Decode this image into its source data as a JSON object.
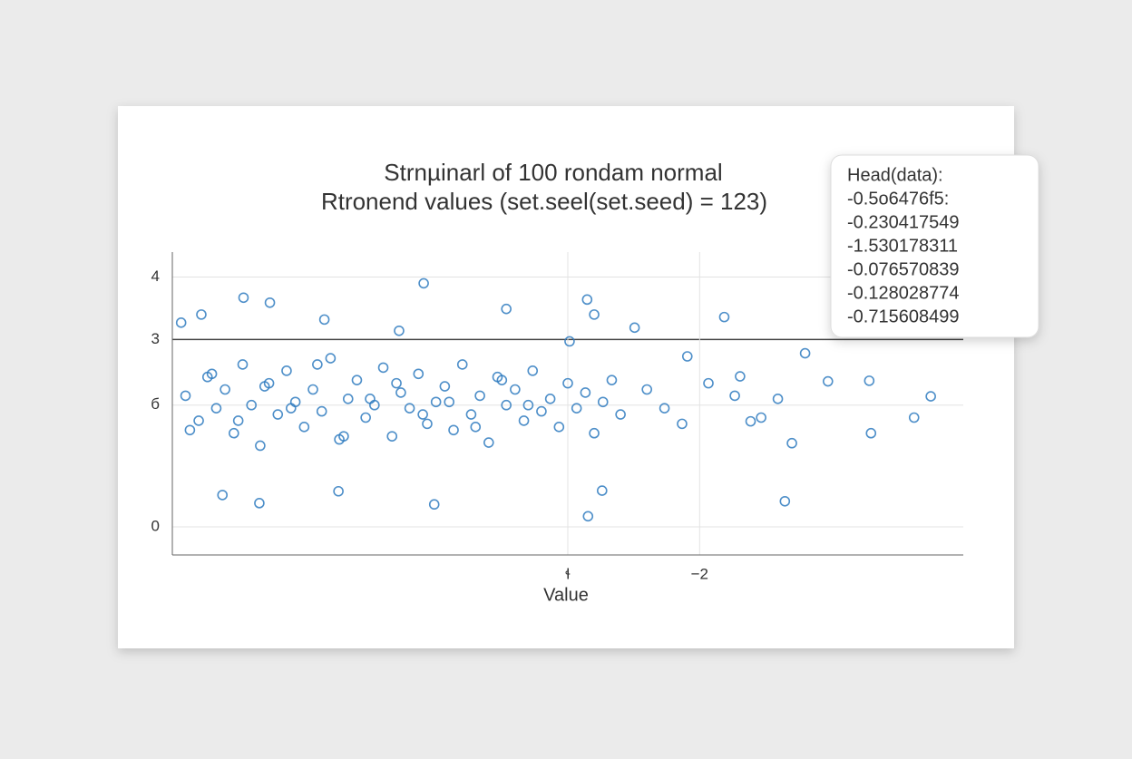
{
  "chart_data": {
    "type": "scatter",
    "title": [
      "Strnµinarl of 100 rondam normal",
      "Rtronend values (set.seel(set.seed) = 123)"
    ],
    "xlabel": "Value",
    "color": "#2f7bbf",
    "grid": true,
    "emphasis_ytick": 2,
    "xlim": [
      -8,
      1
    ],
    "ylim": [
      -0.45,
      4.4
    ],
    "xticks": [
      {
        "value": -3.5,
        "label": "ɬ"
      },
      {
        "value": -2,
        "label": "−2"
      }
    ],
    "yticks": [
      0,
      {
        "value": 1.95,
        "label": "б"
      },
      3,
      4
    ],
    "x": [
      -7.19,
      -6.89,
      -5.14,
      -3.28,
      -4.2,
      -1.72,
      -0.8,
      0.63,
      0.44,
      -1.03,
      -3.27,
      -7.01,
      -7.43,
      -6.11,
      -5.02,
      -3.11,
      -0.07,
      -0.54,
      -0.05,
      -0.95,
      -1.11,
      -1.42,
      -2.74,
      -2.14,
      -1.54,
      -7.9,
      -7.67,
      -6.27,
      -5.42,
      -3.2,
      -3.48,
      -7.85,
      -7.7,
      -7.6,
      -7.5,
      -7.4,
      -7.3,
      -7.2,
      -7.1,
      -7.0,
      -6.9,
      -6.8,
      -6.7,
      -6.6,
      -6.5,
      -6.4,
      -6.3,
      -6.2,
      -6.1,
      -6.0,
      -5.9,
      -5.8,
      -5.7,
      -5.6,
      -5.5,
      -5.4,
      -5.3,
      -5.2,
      -5.1,
      -5.0,
      -4.9,
      -4.8,
      -4.7,
      -4.6,
      -4.5,
      -4.4,
      -4.3,
      -4.2,
      -4.1,
      -4.0,
      -3.9,
      -3.8,
      -3.7,
      -3.6,
      -3.5,
      -3.4,
      -3.3,
      -3.2,
      -3.1,
      -3.0,
      -2.9,
      -2.6,
      -2.4,
      -2.2,
      -1.9,
      -1.6,
      -1.3,
      -7.8,
      -7.55,
      -7.25,
      -6.95,
      -6.65,
      -6.35,
      -6.05,
      -5.75,
      -5.45,
      -5.15,
      -4.85,
      -4.55,
      -4.25,
      -3.95
    ],
    "values": [
      3.67,
      3.59,
      3.9,
      3.64,
      3.49,
      3.36,
      2.78,
      2.09,
      1.75,
      0.41,
      0.17,
      0.38,
      0.51,
      0.57,
      0.36,
      0.58,
      2.34,
      2.33,
      1.5,
      1.34,
      2.05,
      1.69,
      3.19,
      2.73,
      2.41,
      3.27,
      3.4,
      3.32,
      3.14,
      3.4,
      2.97,
      2.1,
      1.7,
      2.4,
      1.9,
      2.2,
      1.5,
      2.6,
      1.95,
      1.3,
      2.3,
      1.8,
      2.5,
      2.0,
      1.6,
      2.2,
      1.85,
      2.7,
      1.4,
      2.05,
      2.35,
      1.75,
      1.95,
      2.55,
      1.45,
      2.15,
      1.9,
      2.45,
      1.65,
      2.0,
      2.25,
      1.55,
      2.6,
      1.8,
      2.1,
      1.35,
      2.4,
      1.95,
      2.2,
      1.7,
      2.5,
      1.85,
      2.05,
      1.6,
      2.3,
      1.9,
      2.15,
      1.5,
      2.0,
      2.35,
      1.8,
      2.2,
      1.9,
      1.65,
      2.3,
      2.1,
      1.75,
      1.55,
      2.45,
      1.7,
      2.25,
      1.9,
      2.6,
      1.45,
      2.05,
      2.3,
      1.8,
      2.0,
      1.6,
      2.35,
      1.95
    ]
  },
  "head_box": {
    "title": "Head(data):",
    "lines": [
      "-0.5o6476f5:",
      "-0.230417549",
      "-1.530178311",
      "-0.076570839",
      "-0.128028774",
      "-0.715608499"
    ]
  }
}
